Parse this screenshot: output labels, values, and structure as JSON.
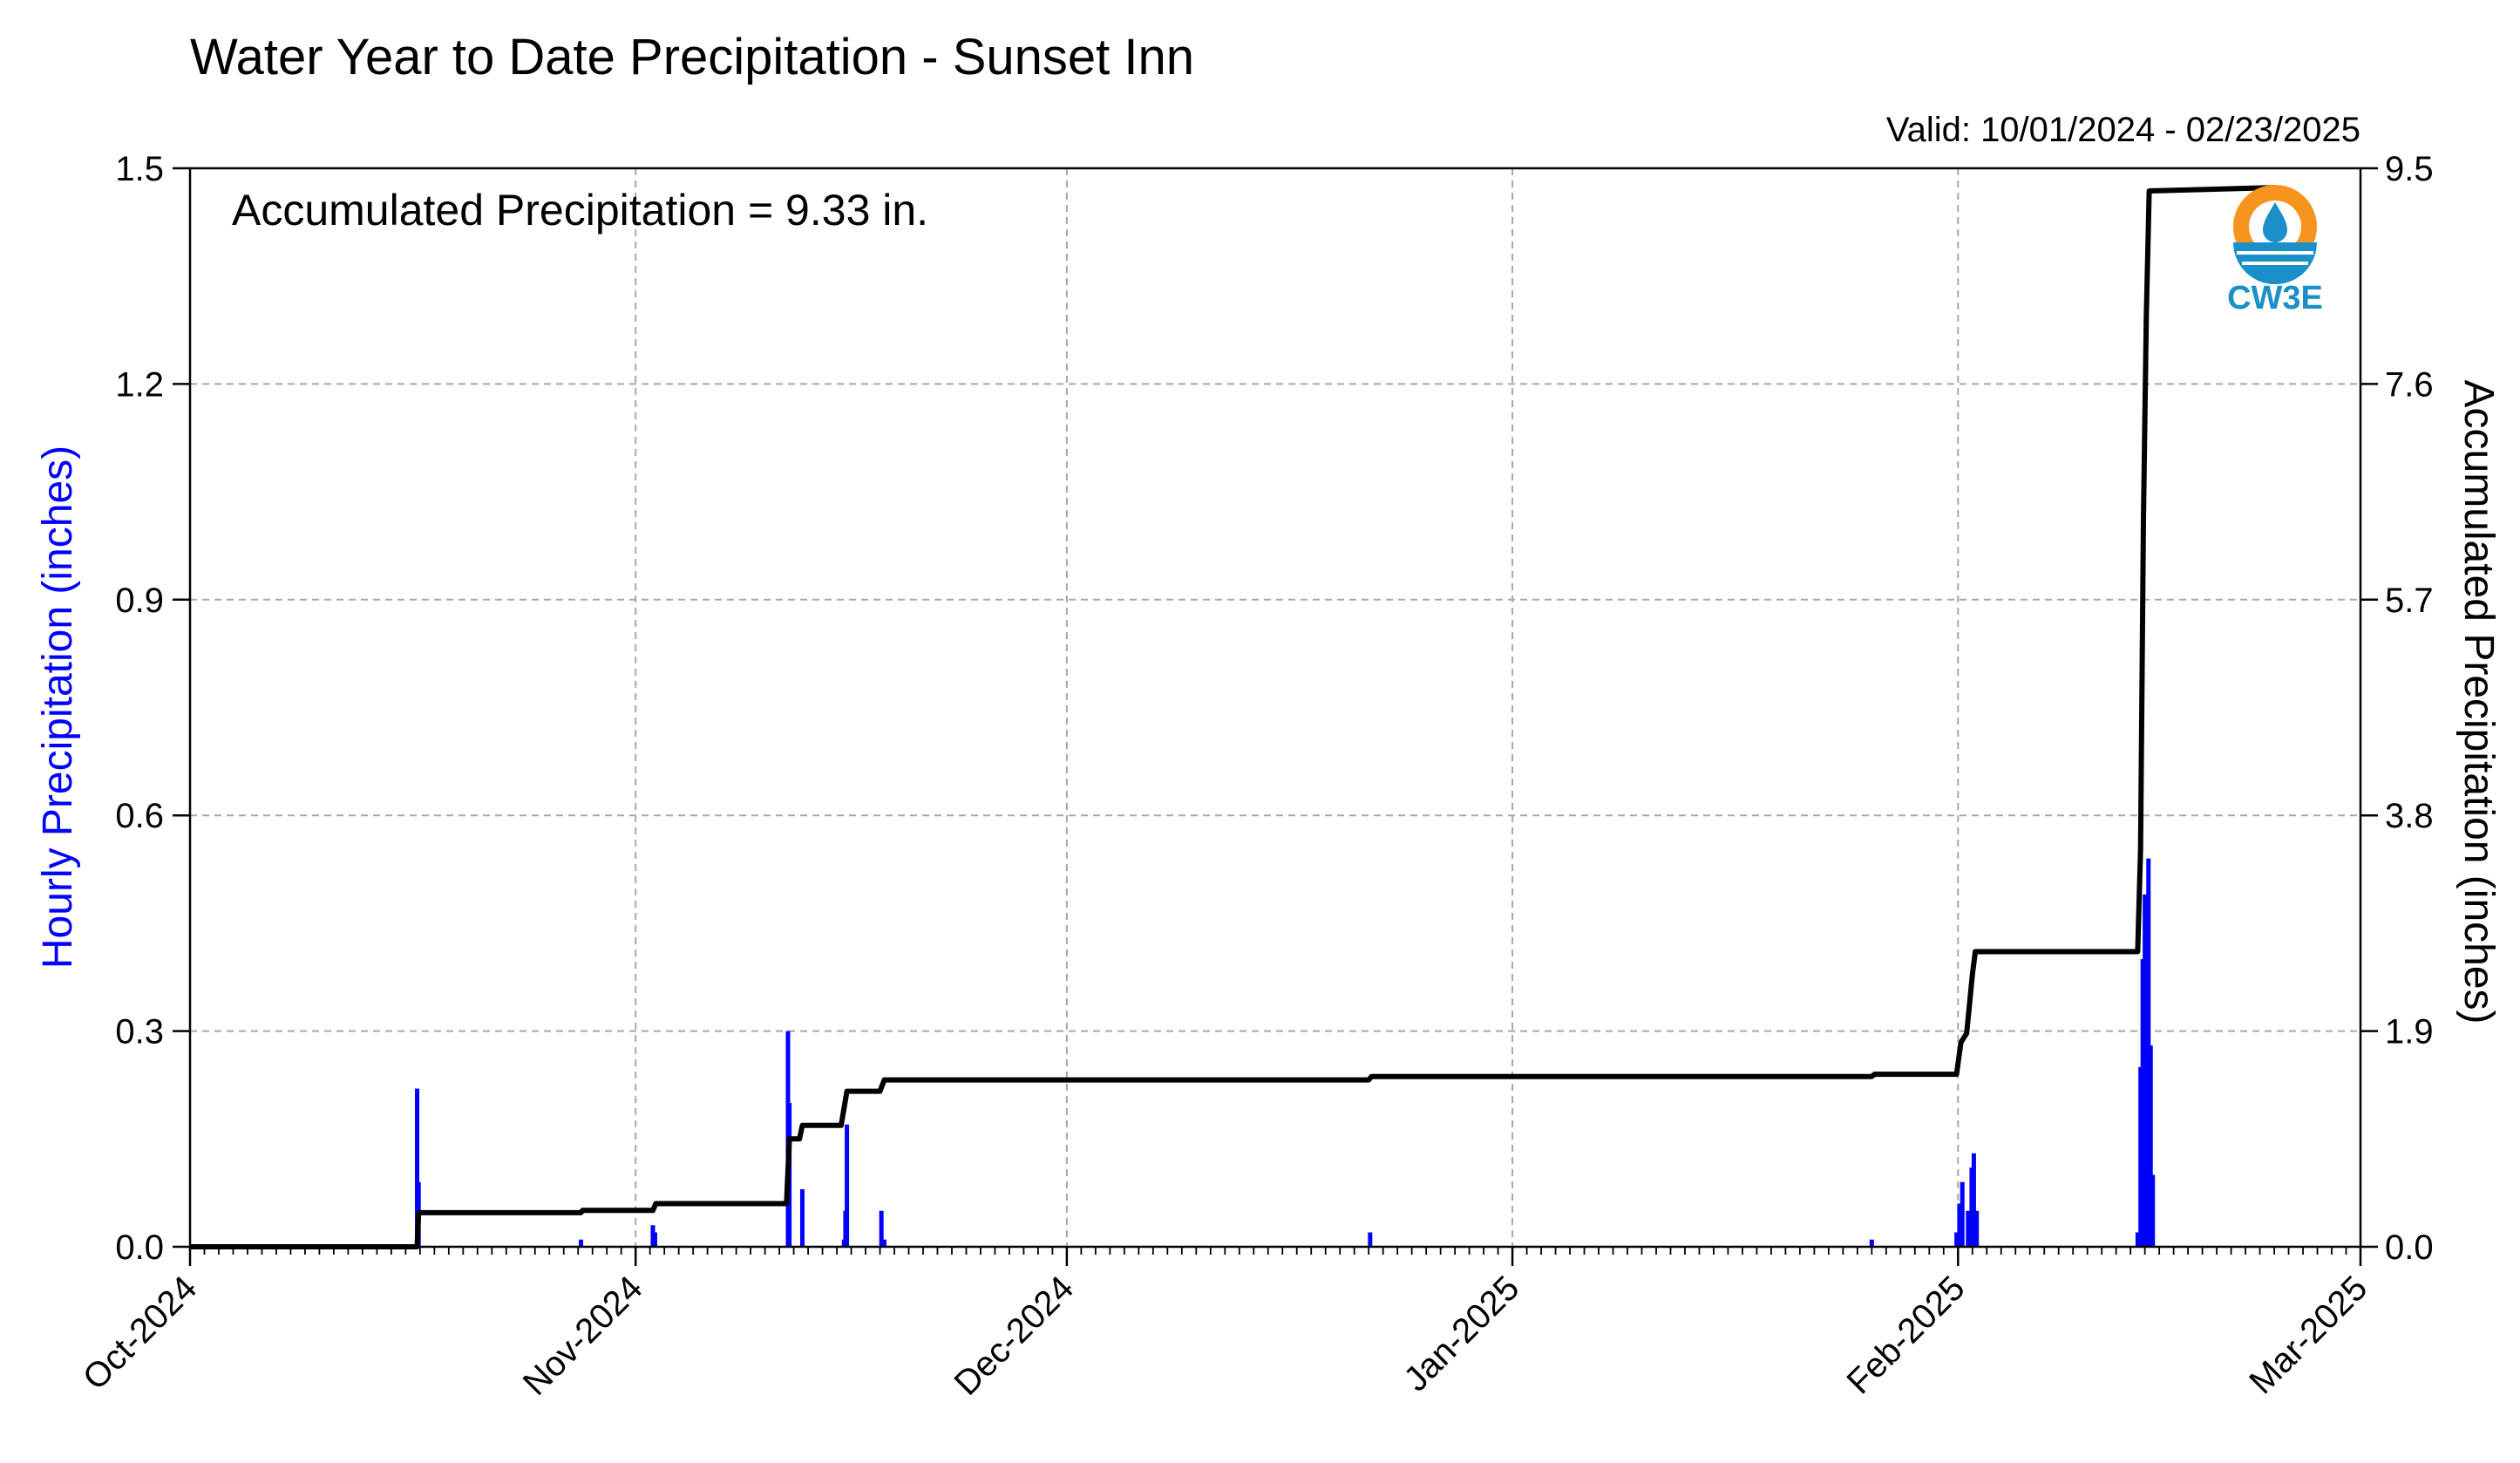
{
  "chart_data": {
    "type": "bar",
    "title": "Water Year to Date Precipitation - Sunset Inn",
    "subtitle": "Valid: 10/01/2024 - 02/23/2025",
    "annotation": "Accumulated Precipitation = 9.33 in.",
    "logo_text": "CW3E",
    "ylabel": "Hourly Precipitation (inches)",
    "y2label": "Accumulated Precipitation (inches)",
    "xlim": [
      0,
      151
    ],
    "ylim": [
      0,
      1.5
    ],
    "y2lim": [
      0,
      9.5
    ],
    "x_ticks": [
      {
        "day": 0,
        "label": "Oct-2024"
      },
      {
        "day": 31,
        "label": "Nov-2024"
      },
      {
        "day": 61,
        "label": "Dec-2024"
      },
      {
        "day": 92,
        "label": "Jan-2025"
      },
      {
        "day": 123,
        "label": "Feb-2025"
      },
      {
        "day": 151,
        "label": "Mar-2025"
      }
    ],
    "y_ticks": [
      "0.0",
      "0.3",
      "0.6",
      "0.9",
      "1.2",
      "1.5"
    ],
    "y_tick_values": [
      0,
      0.3,
      0.6,
      0.9,
      1.2,
      1.5
    ],
    "y2_ticks": [
      "0.0",
      "1.9",
      "3.8",
      "5.7",
      "7.6",
      "9.5"
    ],
    "y2_tick_values": [
      0,
      1.9,
      3.8,
      5.7,
      7.6,
      9.5
    ],
    "grid": true,
    "series": [
      {
        "kind": "bars",
        "color": "#0000ff",
        "points": [
          [
            15.8,
            0.22
          ],
          [
            15.9,
            0.09
          ],
          [
            27.2,
            0.01
          ],
          [
            32.2,
            0.03
          ],
          [
            32.35,
            0.02
          ],
          [
            41.6,
            0.3
          ],
          [
            41.7,
            0.2
          ],
          [
            42.6,
            0.08
          ],
          [
            45.5,
            0.01
          ],
          [
            45.6,
            0.05
          ],
          [
            45.7,
            0.17
          ],
          [
            48.1,
            0.05
          ],
          [
            48.3,
            0.01
          ],
          [
            82.1,
            0.02
          ],
          [
            117.0,
            0.01
          ],
          [
            122.9,
            0.02
          ],
          [
            123.1,
            0.06
          ],
          [
            123.3,
            0.09
          ],
          [
            123.7,
            0.05
          ],
          [
            123.95,
            0.11
          ],
          [
            124.1,
            0.13
          ],
          [
            124.3,
            0.05
          ],
          [
            135.5,
            0.02
          ],
          [
            135.7,
            0.25
          ],
          [
            135.85,
            0.4
          ],
          [
            136.0,
            0.49
          ],
          [
            136.1,
            0.45
          ],
          [
            136.25,
            0.54
          ],
          [
            136.4,
            0.28
          ],
          [
            136.55,
            0.1
          ]
        ]
      },
      {
        "kind": "line",
        "color": "#000000",
        "points": [
          [
            0,
            0
          ],
          [
            15.8,
            0
          ],
          [
            15.9,
            0.3
          ],
          [
            27.2,
            0.3
          ],
          [
            27.3,
            0.32
          ],
          [
            32.2,
            0.32
          ],
          [
            32.4,
            0.38
          ],
          [
            41.5,
            0.38
          ],
          [
            41.7,
            0.95
          ],
          [
            42.4,
            0.95
          ],
          [
            42.6,
            1.07
          ],
          [
            45.3,
            1.07
          ],
          [
            45.7,
            1.37
          ],
          [
            48.0,
            1.37
          ],
          [
            48.3,
            1.47
          ],
          [
            82.0,
            1.47
          ],
          [
            82.2,
            1.5
          ],
          [
            117.0,
            1.5
          ],
          [
            117.2,
            1.52
          ],
          [
            122.9,
            1.52
          ],
          [
            123.2,
            1.8
          ],
          [
            123.6,
            1.88
          ],
          [
            124.0,
            2.4
          ],
          [
            124.2,
            2.6
          ],
          [
            135.5,
            2.6
          ],
          [
            135.7,
            3.5
          ],
          [
            135.9,
            6.4
          ],
          [
            136.1,
            8.2
          ],
          [
            136.3,
            9.3
          ],
          [
            145.0,
            9.33
          ]
        ]
      }
    ]
  }
}
